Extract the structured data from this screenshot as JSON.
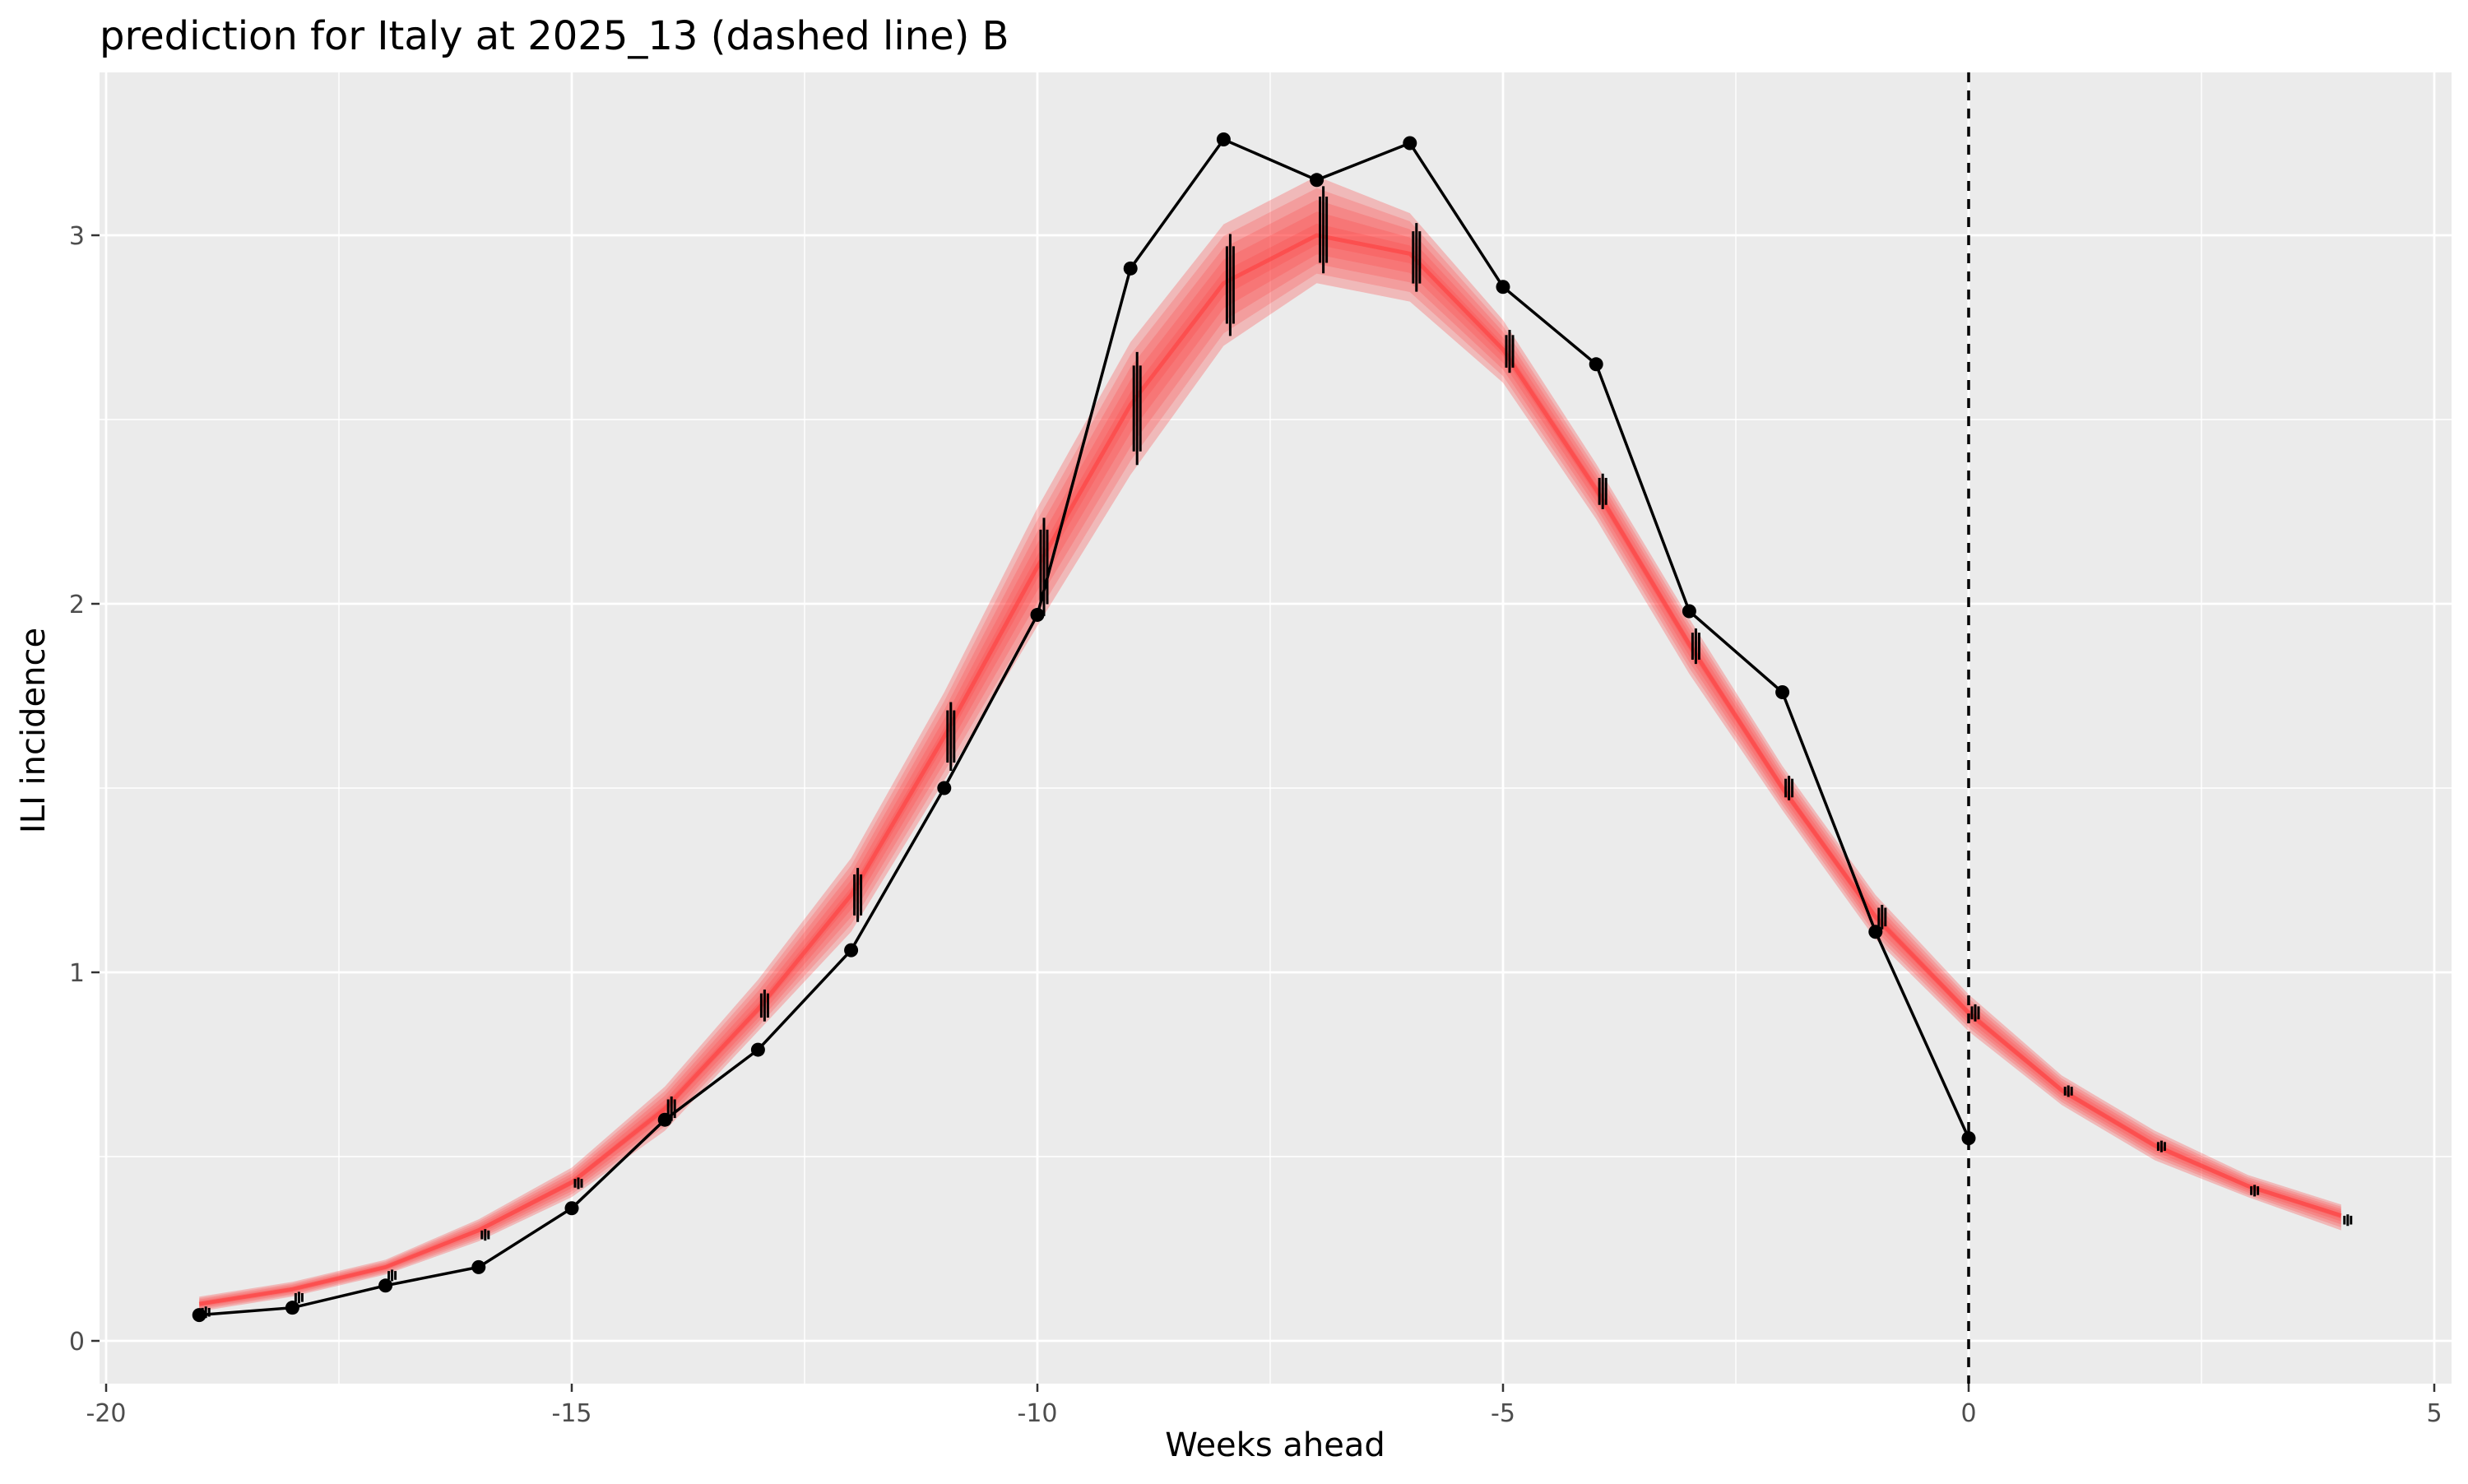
{
  "chart_data": {
    "type": "line",
    "title": "prediction for Italy at 2025_13 (dashed line) B",
    "xlabel": "Weeks ahead",
    "ylabel": "ILI incidence",
    "xlim": [
      -20,
      5
    ],
    "ylim": [
      0,
      3.3
    ],
    "x_ticks": [
      -20,
      -15,
      -10,
      -5,
      0,
      5
    ],
    "x_tick_labels": [
      "-20",
      "-15",
      "-10",
      "-5",
      "0",
      "5"
    ],
    "y_ticks": [
      0,
      1,
      2,
      3
    ],
    "y_tick_labels": [
      "0",
      "1",
      "2",
      "3"
    ],
    "grid": true,
    "background": "#EBEBEB",
    "vline_x": 0,
    "observed": {
      "color": "#000000",
      "x": [
        -19,
        -18,
        -17,
        -16,
        -15,
        -14,
        -13,
        -12,
        -11,
        -10,
        -9,
        -8,
        -7,
        -6,
        -5,
        -4,
        -3,
        -2,
        -1,
        0
      ],
      "y": [
        0.07,
        0.09,
        0.15,
        0.2,
        0.36,
        0.6,
        0.79,
        1.06,
        1.5,
        1.97,
        2.91,
        3.26,
        3.15,
        3.25,
        2.86,
        2.65,
        1.98,
        1.76,
        1.11,
        0.55
      ]
    },
    "prediction_band": {
      "color": "#FF3B3B",
      "x": [
        -19,
        -18,
        -17,
        -16,
        -15,
        -14,
        -13,
        -12,
        -11,
        -10,
        -9,
        -8,
        -7,
        -6,
        -5,
        -4,
        -3,
        -2,
        -1,
        0,
        1,
        2,
        3,
        4
      ],
      "lower": [
        0.08,
        0.12,
        0.18,
        0.27,
        0.39,
        0.57,
        0.84,
        1.11,
        1.52,
        1.94,
        2.35,
        2.7,
        2.87,
        2.82,
        2.6,
        2.23,
        1.81,
        1.44,
        1.09,
        0.84,
        0.64,
        0.49,
        0.39,
        0.3
      ],
      "median": [
        0.1,
        0.14,
        0.2,
        0.3,
        0.43,
        0.63,
        0.9,
        1.21,
        1.64,
        2.1,
        2.54,
        2.87,
        3.0,
        2.95,
        2.69,
        2.31,
        1.89,
        1.5,
        1.15,
        0.89,
        0.68,
        0.53,
        0.42,
        0.34
      ],
      "upper": [
        0.12,
        0.16,
        0.22,
        0.33,
        0.47,
        0.69,
        0.98,
        1.31,
        1.76,
        2.26,
        2.71,
        3.03,
        3.16,
        3.06,
        2.77,
        2.38,
        1.96,
        1.56,
        1.21,
        0.94,
        0.72,
        0.57,
        0.45,
        0.37
      ]
    }
  }
}
